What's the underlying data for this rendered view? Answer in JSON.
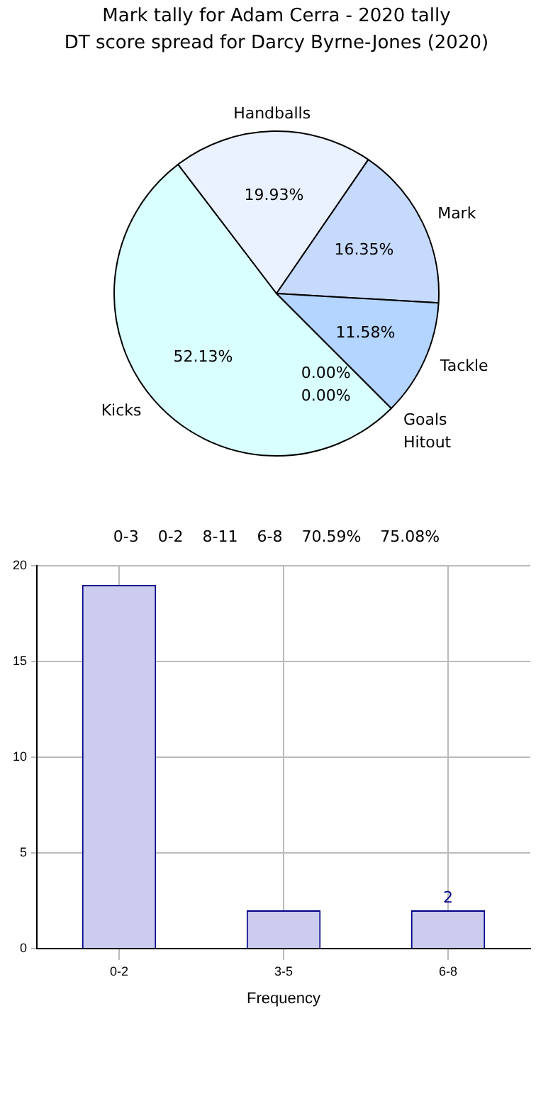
{
  "chart_data": [
    {
      "type": "pie",
      "title": "Mark tally for Adam Cerra - 2020 tally",
      "subtitle": "DT score spread for Darcy Byrne-Jones (2020)",
      "categories": [
        "Kicks",
        "Handballs",
        "Mark",
        "Tackle",
        "Goals",
        "Hitout"
      ],
      "values": [
        52.13,
        19.93,
        16.35,
        11.58,
        0.0,
        0.0
      ],
      "value_labels": [
        "52.13%",
        "19.93%",
        "16.35%",
        "11.58%",
        "0.00%",
        "0.00%"
      ],
      "colors": [
        "#d9ffff",
        "#eaf2ff",
        "#c6dafe",
        "#b3d5ff",
        "#b3d5ff",
        "#eaf2ff"
      ],
      "annotations": [
        "0-3",
        "0-2",
        "8-11",
        "6-8",
        "70.59%",
        "75.08%"
      ],
      "legend": false
    },
    {
      "type": "bar",
      "xlabel": "Frequency",
      "categories": [
        "0-2",
        "3-5",
        "6-8"
      ],
      "values": [
        19,
        2,
        2
      ],
      "value_labels": [
        null,
        null,
        "2"
      ],
      "color": "#ccccee",
      "ylim": [
        0,
        20
      ],
      "yticks": [
        0,
        5,
        10,
        15,
        20
      ],
      "grid": true,
      "legend": false
    }
  ]
}
